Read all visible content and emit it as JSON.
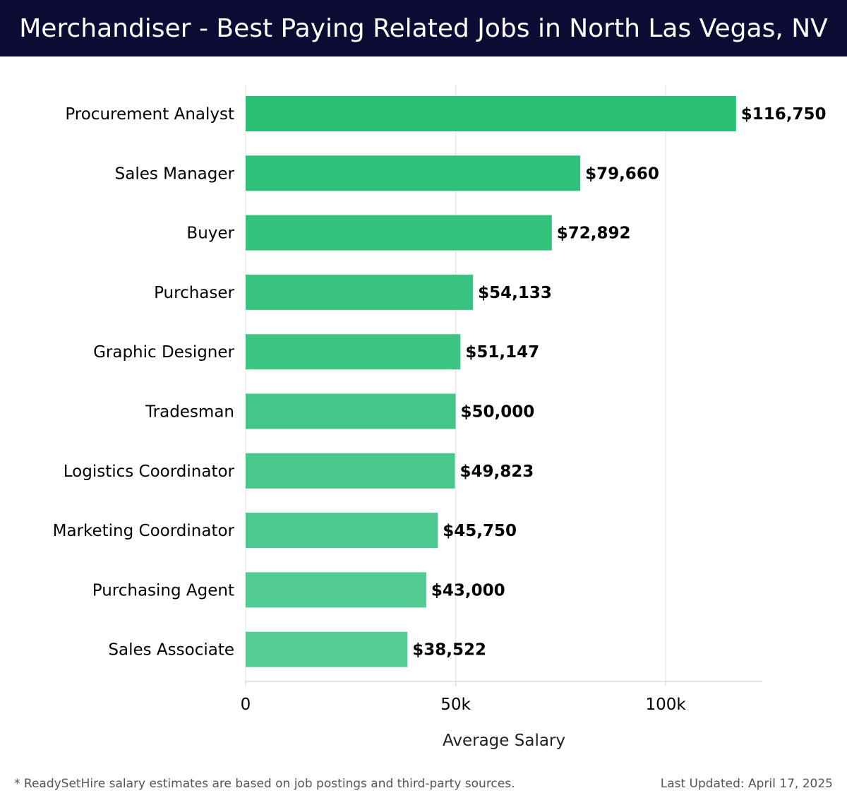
{
  "header": {
    "title": "Merchandiser - Best Paying Related Jobs in North Las Vegas, NV"
  },
  "chart_data": {
    "type": "bar",
    "orientation": "horizontal",
    "categories": [
      "Procurement Analyst",
      "Sales Manager",
      "Buyer",
      "Purchaser",
      "Graphic Designer",
      "Tradesman",
      "Logistics Coordinator",
      "Marketing Coordinator",
      "Purchasing Agent",
      "Sales Associate"
    ],
    "values": [
      116750,
      79660,
      72892,
      54133,
      51147,
      50000,
      49823,
      45750,
      43000,
      38522
    ],
    "value_labels": [
      "$116,750",
      "$79,660",
      "$72,892",
      "$54,133",
      "$51,147",
      "$50,000",
      "$49,823",
      "$45,750",
      "$43,000",
      "$38,522"
    ],
    "xlabel": "Average Salary",
    "ylabel": "",
    "xlim": [
      0,
      123000
    ],
    "xticks": [
      0,
      50000,
      100000
    ],
    "xtick_labels": [
      "0",
      "50k",
      "100k"
    ],
    "grid": true,
    "colors": {
      "bar_top": "#2abf75",
      "bar_bottom": "#57cc96",
      "grid": "#e0e0e0",
      "axis": "#cccccc",
      "label": "#000000"
    }
  },
  "footer": {
    "note": "* ReadySetHire salary estimates are based on job postings and third-party sources.",
    "updated": "Last Updated: April 17, 2025"
  }
}
